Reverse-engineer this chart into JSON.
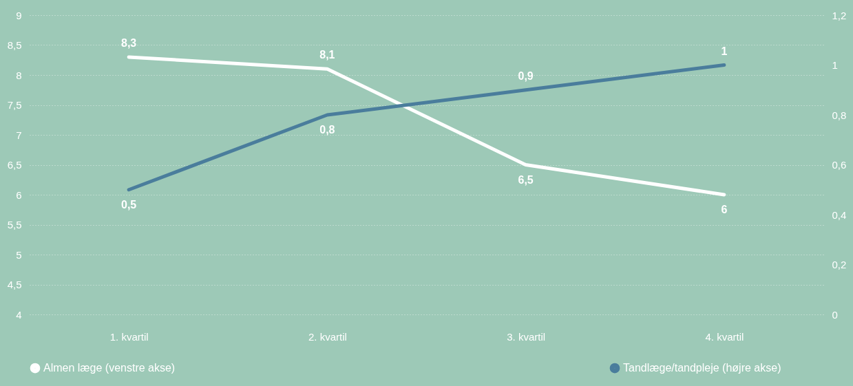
{
  "chart_data": {
    "type": "line",
    "categories": [
      "1. kvartil",
      "2. kvartil",
      "3. kvartil",
      "4. kvartil"
    ],
    "series": [
      {
        "name": "Almen læge (venstre akse)",
        "color": "#ffffff",
        "values": [
          8.3,
          8.1,
          6.5,
          6.0
        ],
        "value_labels": [
          "8,3",
          "8,1",
          "6,5",
          "6"
        ]
      },
      {
        "name": "Tandlæge/tandpleje (højre akse)",
        "color": "#4a7d9c",
        "values": [
          0.5,
          0.8,
          0.9,
          1.0
        ],
        "value_labels": [
          "0,5",
          "0,8",
          "0,9",
          "1"
        ],
        "axis": "y2"
      }
    ],
    "ylim": [
      4,
      9
    ],
    "yticks": [
      4,
      {
        "value": 4.5,
        "label": "4,5"
      },
      5,
      {
        "value": 5.5,
        "label": "5,5"
      },
      6,
      {
        "value": 6.5,
        "label": "6,5"
      },
      7,
      {
        "value": 7.5,
        "label": "7,5"
      },
      8,
      {
        "value": 8.5,
        "label": "8,5"
      },
      9
    ],
    "y2lim": [
      0,
      1.2
    ],
    "y2ticks": [
      0,
      {
        "value": 0.2,
        "label": "0,2"
      },
      {
        "value": 0.4,
        "label": "0,4"
      },
      {
        "value": 0.6,
        "label": "0,6"
      },
      {
        "value": 0.8,
        "label": "0,8"
      },
      1,
      {
        "value": 1.2,
        "label": "1,2"
      }
    ],
    "grid": "y",
    "legend": "bottom",
    "marker": "none",
    "line_style": "solid"
  }
}
